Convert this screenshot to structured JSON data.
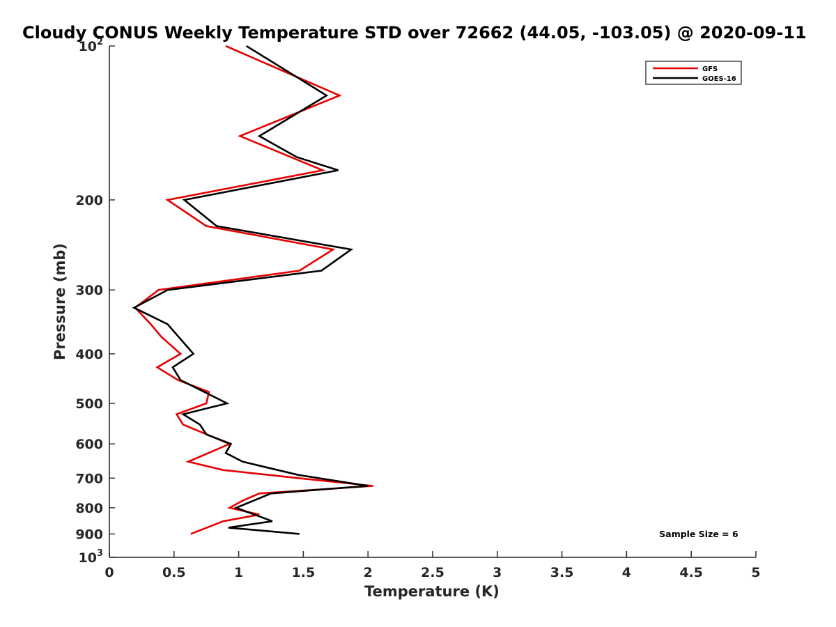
{
  "chart_data": {
    "type": "line",
    "title": "Cloudy CONUS Weekly Temperature STD over 72662 (44.05, -103.05) @ 2020-09-11",
    "xlabel": "Temperature (K)",
    "ylabel": "Pressure (mb)",
    "xlim": [
      0,
      5
    ],
    "ylim": [
      100,
      1000
    ],
    "y_scale": "log",
    "y_reversed": true,
    "x_ticks": [
      "0",
      "0.5",
      "1",
      "1.5",
      "2",
      "2.5",
      "3",
      "3.5",
      "4",
      "4.5",
      "5"
    ],
    "y_ticks": [
      {
        "value": 100,
        "base": "10",
        "exp": "2"
      },
      {
        "value": 200,
        "label": "200"
      },
      {
        "value": 300,
        "label": "300"
      },
      {
        "value": 400,
        "label": "400"
      },
      {
        "value": 500,
        "label": "500"
      },
      {
        "value": 600,
        "label": "600"
      },
      {
        "value": 700,
        "label": "700"
      },
      {
        "value": 800,
        "label": "800"
      },
      {
        "value": 900,
        "label": "900"
      },
      {
        "value": 1000,
        "base": "10",
        "exp": "3"
      }
    ],
    "grid": false,
    "legend_position": "top-right",
    "annotation": "Sample Size = 6",
    "series": [
      {
        "name": "GFS",
        "color": "#e60000",
        "points": [
          [
            0.9,
            100
          ],
          [
            1.78,
            125
          ],
          [
            1.01,
            150
          ],
          [
            1.65,
            175
          ],
          [
            0.45,
            200
          ],
          [
            0.75,
            225
          ],
          [
            1.73,
            250
          ],
          [
            1.47,
            275
          ],
          [
            0.38,
            300
          ],
          [
            0.2,
            325
          ],
          [
            0.32,
            350
          ],
          [
            0.4,
            370
          ],
          [
            0.55,
            400
          ],
          [
            0.37,
            425
          ],
          [
            0.53,
            450
          ],
          [
            0.77,
            475
          ],
          [
            0.75,
            500
          ],
          [
            0.52,
            525
          ],
          [
            0.57,
            550
          ],
          [
            0.93,
            600
          ],
          [
            0.61,
            650
          ],
          [
            0.88,
            675
          ],
          [
            1.46,
            700
          ],
          [
            2.04,
            725
          ],
          [
            1.16,
            750
          ],
          [
            1.03,
            775
          ],
          [
            0.93,
            800
          ],
          [
            1.16,
            825
          ],
          [
            0.88,
            850
          ],
          [
            0.63,
            900
          ]
        ]
      },
      {
        "name": "GOES-16",
        "color": "#000000",
        "points": [
          [
            1.06,
            100
          ],
          [
            1.68,
            125
          ],
          [
            1.16,
            150
          ],
          [
            1.45,
            165
          ],
          [
            1.77,
            175
          ],
          [
            0.58,
            200
          ],
          [
            0.83,
            225
          ],
          [
            1.87,
            250
          ],
          [
            1.64,
            275
          ],
          [
            0.45,
            300
          ],
          [
            0.19,
            325
          ],
          [
            0.45,
            350
          ],
          [
            0.65,
            400
          ],
          [
            0.49,
            425
          ],
          [
            0.55,
            450
          ],
          [
            0.91,
            500
          ],
          [
            0.57,
            525
          ],
          [
            0.7,
            550
          ],
          [
            0.75,
            575
          ],
          [
            0.94,
            600
          ],
          [
            0.9,
            625
          ],
          [
            1.03,
            650
          ],
          [
            1.46,
            690
          ],
          [
            2.0,
            725
          ],
          [
            1.25,
            750
          ],
          [
            0.98,
            800
          ],
          [
            1.26,
            850
          ],
          [
            0.92,
            875
          ],
          [
            1.47,
            900
          ]
        ]
      }
    ]
  }
}
